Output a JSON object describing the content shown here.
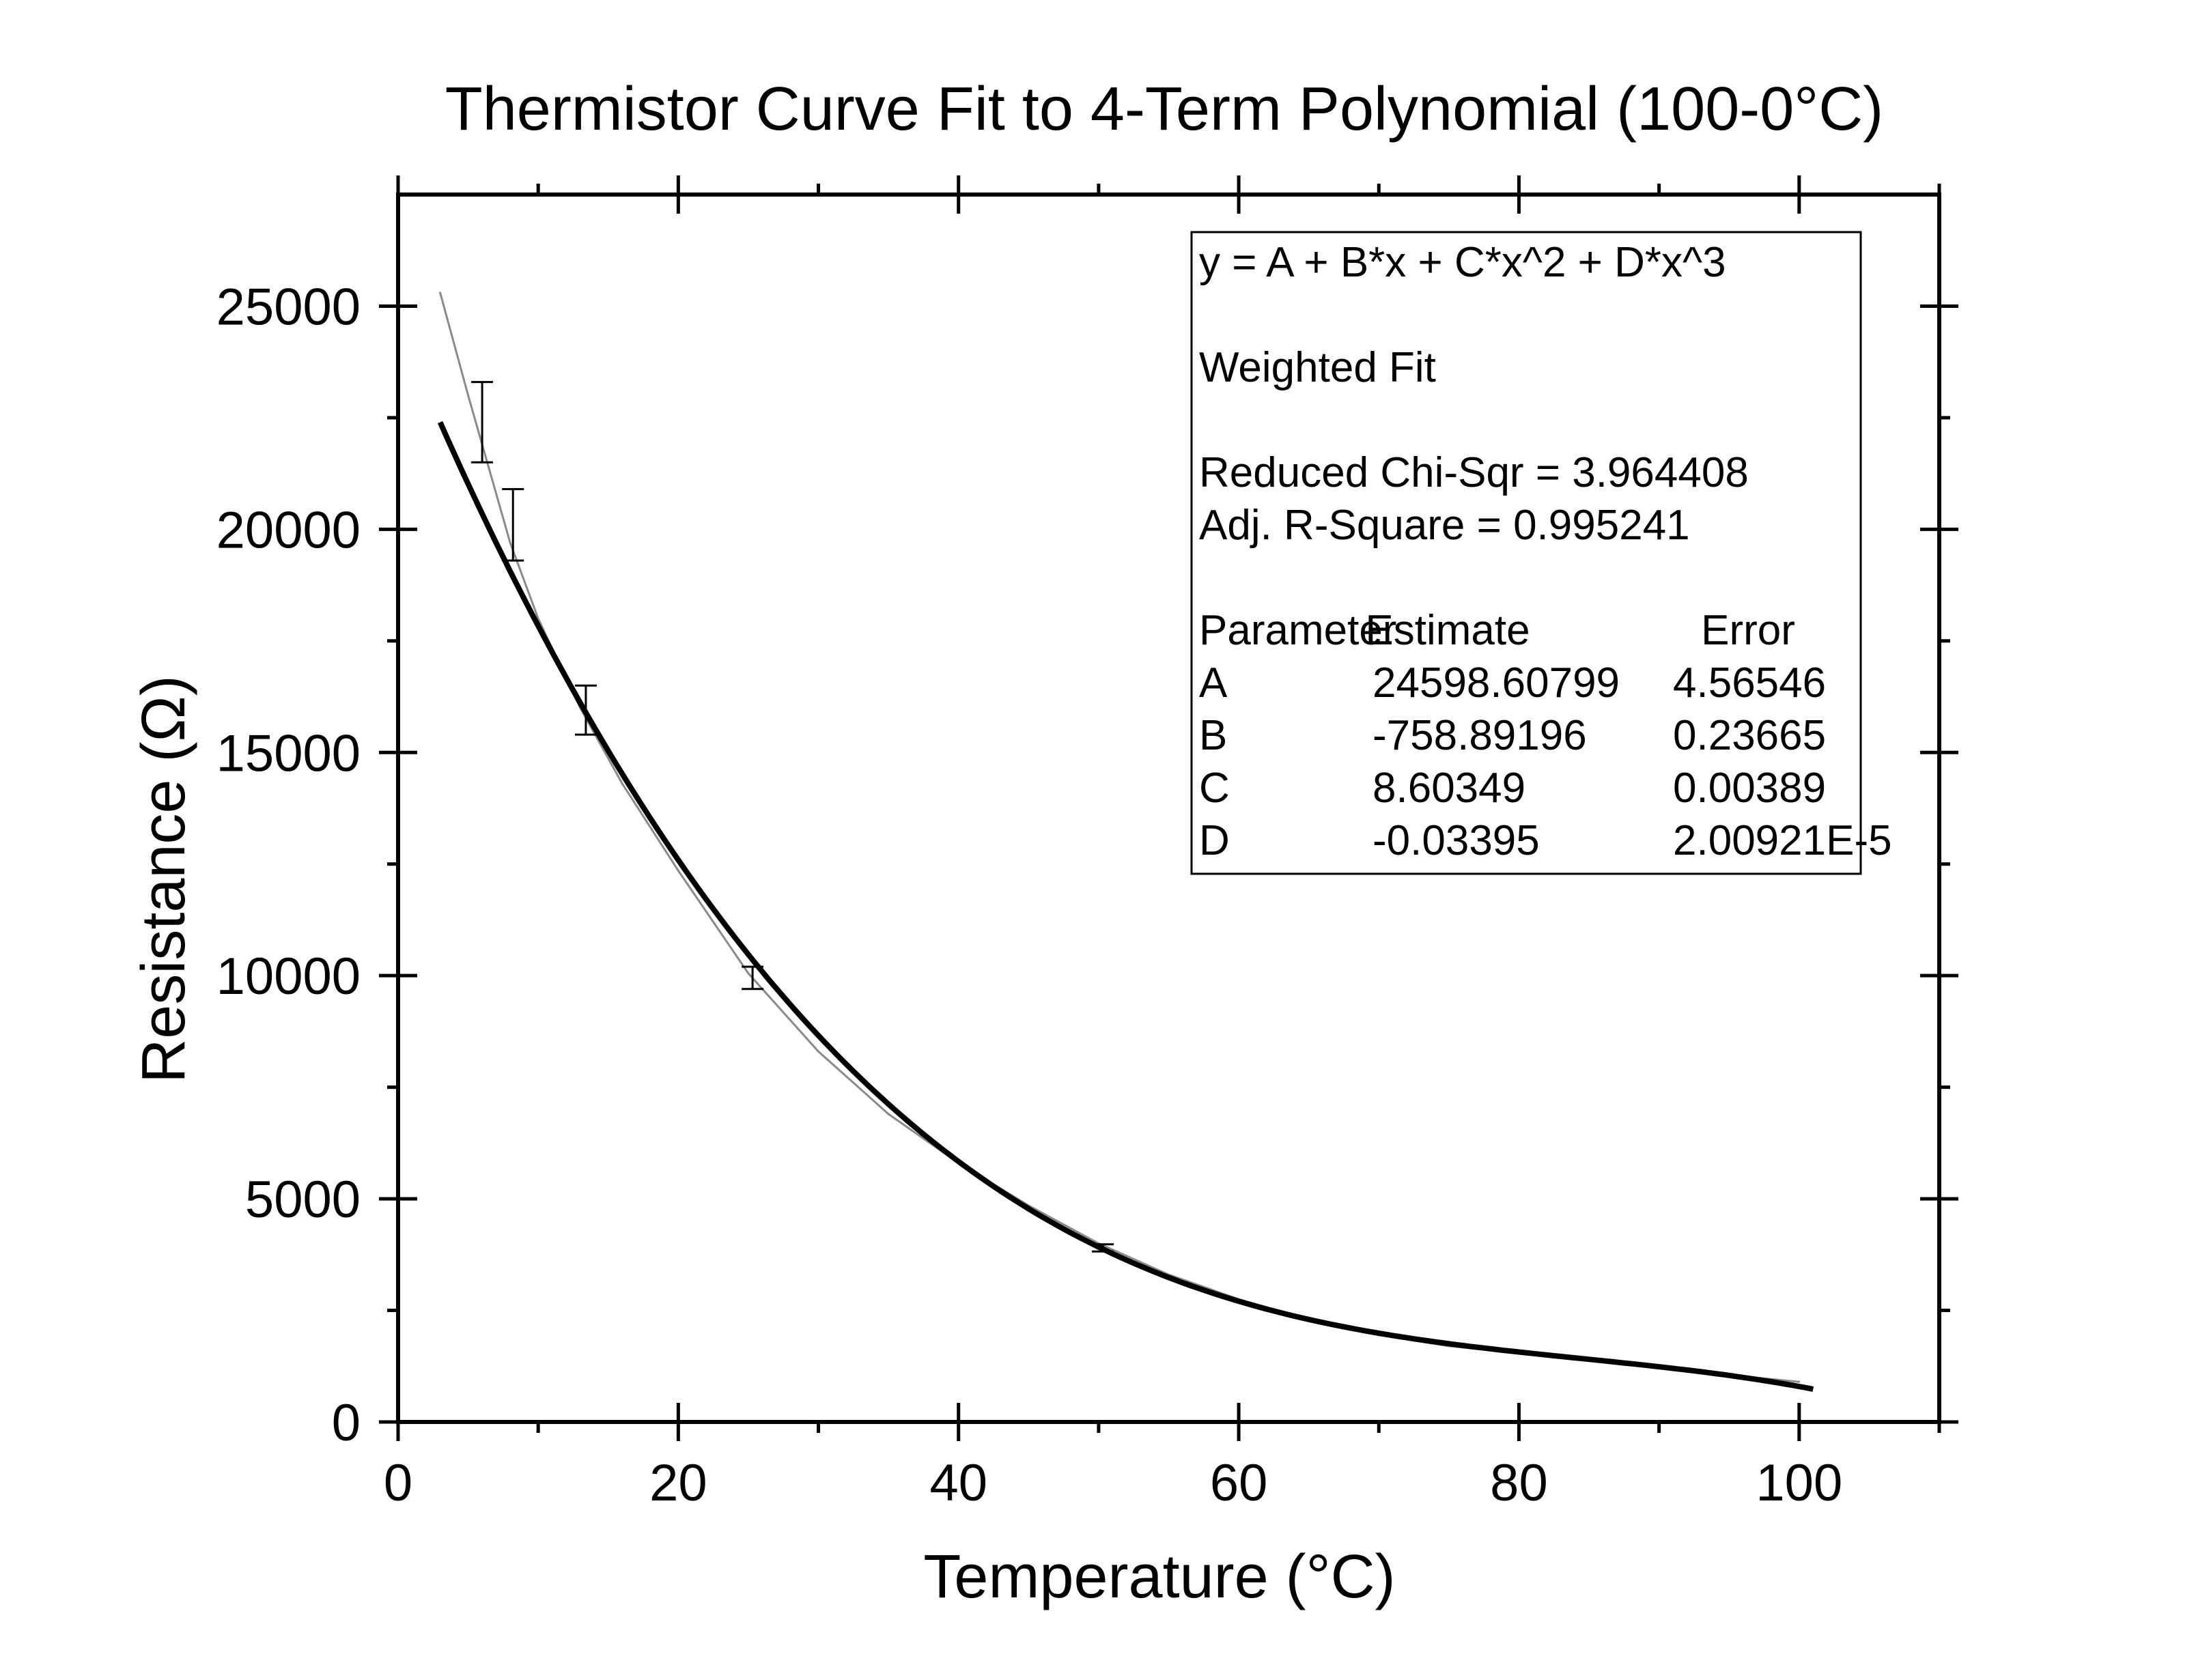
{
  "chart_data": {
    "type": "scatter",
    "title": "Thermistor Curve Fit to 4-Term Polynomial (100-0°C)",
    "xlabel": "Temperature (°C)",
    "ylabel": "Resistance (Ω)",
    "xlim": [
      0,
      110
    ],
    "ylim": [
      0,
      27500
    ],
    "x_ticks": [
      0,
      20,
      40,
      60,
      80,
      100
    ],
    "x_tick_labels": [
      "0",
      "20",
      "40",
      "60",
      "80",
      "100"
    ],
    "x_minor_ticks": [
      10,
      30,
      50,
      70,
      90,
      110
    ],
    "y_ticks": [
      0,
      5000,
      10000,
      15000,
      20000,
      25000
    ],
    "y_tick_labels": [
      "0",
      "5000",
      "10000",
      "15000",
      "20000",
      "25000"
    ],
    "y_minor_ticks": [
      2500,
      7500,
      12500,
      17500,
      22500
    ],
    "grid": false,
    "frame": "closed box with ticks on all four sides",
    "series": [
      {
        "role": "measured",
        "style": "thin grey line",
        "color": "#8a8a8a",
        "x": [
          3,
          5,
          8,
          10,
          13,
          16,
          20,
          25,
          30,
          35,
          40,
          45,
          50,
          55,
          60,
          65,
          70,
          75,
          80,
          85,
          90,
          95,
          100
        ],
        "y": [
          25300,
          23000,
          19700,
          18000,
          16000,
          14300,
          12350,
          10050,
          8300,
          6900,
          5800,
          4850,
          4000,
          3300,
          2750,
          2300,
          1950,
          1700,
          1550,
          1400,
          1250,
          1050,
          900
        ]
      },
      {
        "role": "calibration points with error bars",
        "style": "vertical error bars with caps",
        "color": "#000000",
        "x": [
          6,
          8.2,
          13.4,
          25.3,
          50.3
        ],
        "y": [
          22400,
          20100,
          15950,
          9950,
          3900
        ],
        "err": [
          900,
          800,
          550,
          250,
          80
        ]
      },
      {
        "role": "fit",
        "style": "thick black line",
        "color": "#000000",
        "x_range": [
          3,
          101
        ],
        "coefficients": {
          "A": 24598.60799,
          "B": -758.89196,
          "C": 8.60349,
          "D": -0.03395
        }
      }
    ],
    "annotation": {
      "placement": "top-right inside plot area, boxed",
      "lines": [
        "y = A + B*x + C*x^2 + D*x^3",
        "",
        "Weighted Fit",
        "",
        "Reduced Chi-Sqr = 3.964408",
        "Adj. R-Square   = 0.995241",
        ""
      ],
      "table_header": [
        "Parameter",
        "Estimate",
        "Error"
      ],
      "table_rows": [
        [
          "A",
          "24598.60799",
          "4.56546"
        ],
        [
          "B",
          "-758.89196",
          "0.23665"
        ],
        [
          "C",
          "8.60349",
          "0.00389"
        ],
        [
          "D",
          "-0.03395",
          "2.00921E-5"
        ]
      ]
    }
  }
}
